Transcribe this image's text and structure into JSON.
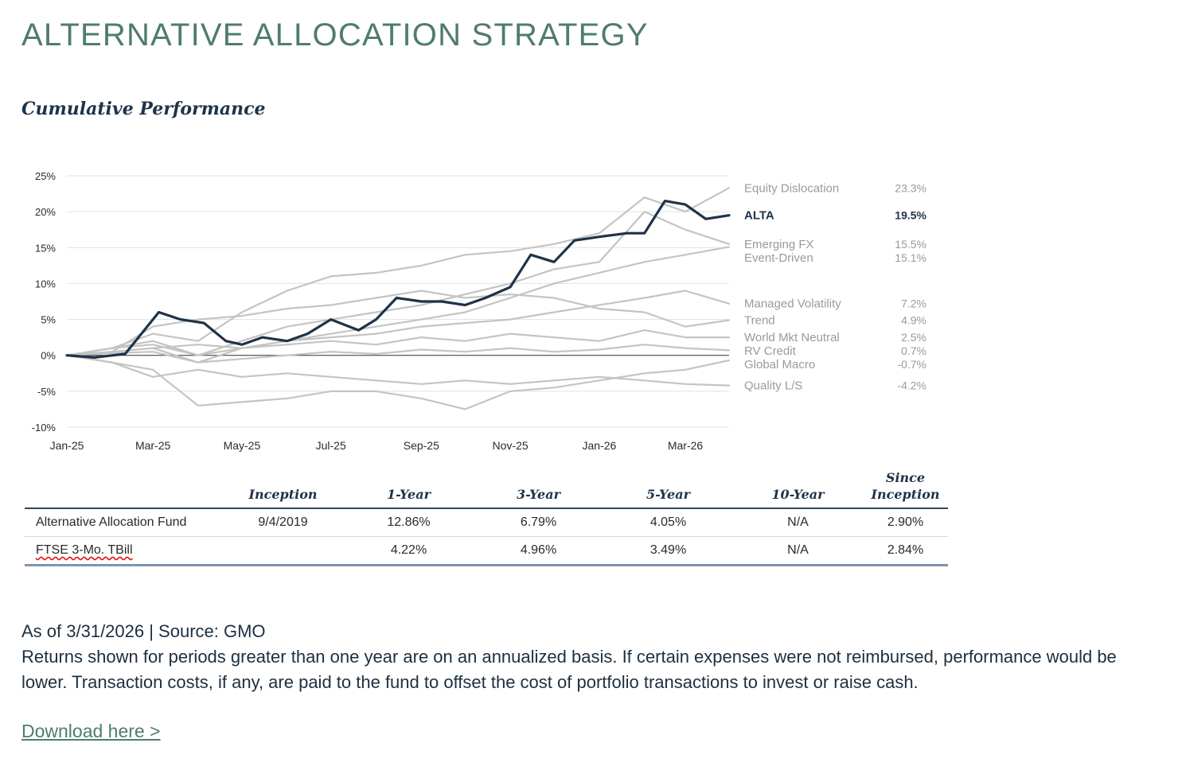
{
  "header": {
    "title": "ALTERNATIVE ALLOCATION STRATEGY",
    "subtitle": "Cumulative Performance"
  },
  "colors": {
    "accent": "#4f7d69",
    "navy": "#1d3348",
    "benchmark": "#c4c4c4"
  },
  "chart_data": {
    "type": "line",
    "title": "",
    "xlabel": "",
    "ylabel": "",
    "ylim": [
      -10,
      25
    ],
    "y_ticks": [
      25,
      20,
      15,
      10,
      5,
      0,
      -5,
      -10
    ],
    "y_tick_labels": [
      "25%",
      "20%",
      "15%",
      "10%",
      "5%",
      "0%",
      "-5%",
      "-10%"
    ],
    "x_ticks": [
      "Jan-25",
      "Mar-25",
      "May-25",
      "Jul-25",
      "Sep-25",
      "Nov-25",
      "Jan-26",
      "Mar-26"
    ],
    "x_tick_positions": [
      "2025-01-01",
      "2025-03-01",
      "2025-05-01",
      "2025-07-01",
      "2025-09-01",
      "2025-11-01",
      "2026-01-01",
      "2026-03-01"
    ],
    "x_range": [
      "2025-01-01",
      "2026-03-31"
    ],
    "grid": true,
    "legend_position": "right",
    "series": [
      {
        "name": "Equity Dislocation",
        "final": "23.3%",
        "highlight": false,
        "color": "#c4c4c4",
        "x": [
          "2025-01-01",
          "2025-02-01",
          "2025-03-01",
          "2025-04-01",
          "2025-05-01",
          "2025-06-01",
          "2025-07-01",
          "2025-08-01",
          "2025-09-01",
          "2025-10-01",
          "2025-11-01",
          "2025-12-01",
          "2026-01-01",
          "2026-02-01",
          "2026-03-01",
          "2026-03-31"
        ],
        "values": [
          0,
          1,
          3,
          2,
          6,
          9,
          11,
          11.5,
          12.5,
          14,
          14.5,
          15.5,
          17,
          22,
          20,
          23.3
        ]
      },
      {
        "name": "ALTA",
        "final": "19.5%",
        "highlight": true,
        "color": "#1d3348",
        "x": [
          "2025-01-01",
          "2025-01-20",
          "2025-02-10",
          "2025-03-05",
          "2025-03-20",
          "2025-04-05",
          "2025-04-20",
          "2025-05-01",
          "2025-05-15",
          "2025-06-01",
          "2025-06-15",
          "2025-07-01",
          "2025-07-20",
          "2025-08-01",
          "2025-08-15",
          "2025-09-01",
          "2025-09-15",
          "2025-10-01",
          "2025-10-15",
          "2025-11-01",
          "2025-11-15",
          "2025-12-01",
          "2025-12-15",
          "2026-01-01",
          "2026-01-20",
          "2026-02-01",
          "2026-02-15",
          "2026-03-01",
          "2026-03-15",
          "2026-03-31"
        ],
        "values": [
          0,
          -0.3,
          0.2,
          6,
          5,
          4.5,
          2,
          1.5,
          2.5,
          2,
          3,
          5,
          3.5,
          5,
          8,
          7.5,
          7.5,
          7,
          8,
          9.5,
          14,
          13,
          16,
          16.5,
          17,
          17,
          21.5,
          21,
          19,
          19.5
        ]
      },
      {
        "name": "Emerging FX",
        "final": "15.5%",
        "highlight": false,
        "color": "#c4c4c4",
        "x": [
          "2025-01-01",
          "2025-02-01",
          "2025-03-01",
          "2025-04-01",
          "2025-05-01",
          "2025-06-01",
          "2025-07-01",
          "2025-08-01",
          "2025-09-01",
          "2025-10-01",
          "2025-11-01",
          "2025-12-01",
          "2026-01-01",
          "2026-02-01",
          "2026-03-01",
          "2026-03-31"
        ],
        "values": [
          0,
          1,
          1.5,
          0,
          2,
          4,
          5,
          6,
          7,
          8.5,
          10,
          12,
          13,
          20,
          17.5,
          15.5
        ]
      },
      {
        "name": "Event-Driven",
        "final": "15.1%",
        "highlight": false,
        "color": "#c4c4c4",
        "x": [
          "2025-01-01",
          "2025-02-01",
          "2025-03-01",
          "2025-04-01",
          "2025-05-01",
          "2025-06-01",
          "2025-07-01",
          "2025-08-01",
          "2025-09-01",
          "2025-10-01",
          "2025-11-01",
          "2025-12-01",
          "2026-01-01",
          "2026-02-01",
          "2026-03-01",
          "2026-03-31"
        ],
        "values": [
          0,
          0.5,
          1,
          -1,
          1,
          2,
          3,
          4,
          5,
          6,
          8,
          10,
          11.5,
          13,
          14,
          15.1
        ]
      },
      {
        "name": "Managed Volatility",
        "final": "7.2%",
        "highlight": false,
        "color": "#c4c4c4",
        "x": [
          "2025-01-01",
          "2025-02-01",
          "2025-03-01",
          "2025-04-01",
          "2025-05-01",
          "2025-06-01",
          "2025-07-01",
          "2025-08-01",
          "2025-09-01",
          "2025-10-01",
          "2025-11-01",
          "2025-12-01",
          "2026-01-01",
          "2026-02-01",
          "2026-03-01",
          "2026-03-31"
        ],
        "values": [
          0,
          1,
          2,
          0,
          1,
          2,
          2.5,
          3,
          4,
          4.5,
          5,
          6,
          7,
          8,
          9,
          7.2
        ]
      },
      {
        "name": "Trend",
        "final": "4.9%",
        "highlight": false,
        "color": "#c4c4c4",
        "x": [
          "2025-01-01",
          "2025-02-01",
          "2025-03-01",
          "2025-04-01",
          "2025-05-01",
          "2025-06-01",
          "2025-07-01",
          "2025-08-01",
          "2025-09-01",
          "2025-10-01",
          "2025-11-01",
          "2025-12-01",
          "2026-01-01",
          "2026-02-01",
          "2026-03-01",
          "2026-03-31"
        ],
        "values": [
          0,
          0.5,
          4,
          5,
          5.5,
          6.5,
          7,
          8,
          9,
          8,
          8.5,
          8,
          6.5,
          6,
          4,
          4.9
        ]
      },
      {
        "name": "World Mkt Neutral",
        "final": "2.5%",
        "highlight": false,
        "color": "#c4c4c4",
        "x": [
          "2025-01-01",
          "2025-02-01",
          "2025-03-01",
          "2025-04-01",
          "2025-05-01",
          "2025-06-01",
          "2025-07-01",
          "2025-08-01",
          "2025-09-01",
          "2025-10-01",
          "2025-11-01",
          "2025-12-01",
          "2026-01-01",
          "2026-02-01",
          "2026-03-01",
          "2026-03-31"
        ],
        "values": [
          0,
          0.5,
          1,
          1.5,
          1,
          1.5,
          2,
          1.5,
          2.5,
          2,
          3,
          2.5,
          2,
          3.5,
          2.5,
          2.5
        ]
      },
      {
        "name": "RV Credit",
        "final": "0.7%",
        "highlight": false,
        "color": "#c4c4c4",
        "x": [
          "2025-01-01",
          "2025-02-01",
          "2025-03-01",
          "2025-04-01",
          "2025-05-01",
          "2025-06-01",
          "2025-07-01",
          "2025-08-01",
          "2025-09-01",
          "2025-10-01",
          "2025-11-01",
          "2025-12-01",
          "2026-01-01",
          "2026-02-01",
          "2026-03-01",
          "2026-03-31"
        ],
        "values": [
          0,
          0.3,
          0.5,
          -1,
          -0.5,
          0,
          0.5,
          0.2,
          0.8,
          0.5,
          1,
          0.5,
          0.8,
          1.5,
          1,
          0.7
        ]
      },
      {
        "name": "Global Macro",
        "final": "-0.7%",
        "highlight": false,
        "color": "#c4c4c4",
        "x": [
          "2025-01-01",
          "2025-02-01",
          "2025-03-01",
          "2025-04-01",
          "2025-05-01",
          "2025-06-01",
          "2025-07-01",
          "2025-08-01",
          "2025-09-01",
          "2025-10-01",
          "2025-11-01",
          "2025-12-01",
          "2026-01-01",
          "2026-02-01",
          "2026-03-01",
          "2026-03-31"
        ],
        "values": [
          0,
          -1,
          -2,
          -7,
          -6.5,
          -6,
          -5,
          -5,
          -6,
          -7.5,
          -5,
          -4.5,
          -3.5,
          -2.5,
          -2,
          -0.7
        ]
      },
      {
        "name": "Quality L/S",
        "final": "-4.2%",
        "highlight": false,
        "color": "#c4c4c4",
        "x": [
          "2025-01-01",
          "2025-02-01",
          "2025-03-01",
          "2025-04-01",
          "2025-05-01",
          "2025-06-01",
          "2025-07-01",
          "2025-08-01",
          "2025-09-01",
          "2025-10-01",
          "2025-11-01",
          "2025-12-01",
          "2026-01-01",
          "2026-02-01",
          "2026-03-01",
          "2026-03-31"
        ],
        "values": [
          0,
          -1,
          -3,
          -2,
          -3,
          -2.5,
          -3,
          -3.5,
          -4,
          -3.5,
          -4,
          -3.5,
          -3,
          -3.5,
          -4,
          -4.2
        ]
      }
    ]
  },
  "table": {
    "headers": [
      "",
      "Inception",
      "1-Year",
      "3-Year",
      "5-Year",
      "10-Year",
      "Since\nInception"
    ],
    "rows": [
      {
        "name": "Alternative Allocation Fund",
        "inception": "9/4/2019",
        "y1": "12.86%",
        "y3": "6.79%",
        "y5": "4.05%",
        "y10": "N/A",
        "si": "2.90%"
      },
      {
        "name": "FTSE 3-Mo. TBill",
        "inception": "",
        "y1": "4.22%",
        "y3": "4.96%",
        "y5": "3.49%",
        "y10": "N/A",
        "si": "2.84%"
      }
    ]
  },
  "footnote": {
    "line1": "As of 3/31/2026 | Source: GMO",
    "line2": "Returns shown for periods greater than one year are on an annualized basis. If certain expenses were not reimbursed, performance would be lower. Transaction costs, if any, are paid to the fund to offset the cost of portfolio transactions to invest or raise cash."
  },
  "link": {
    "label": "Download here >"
  }
}
